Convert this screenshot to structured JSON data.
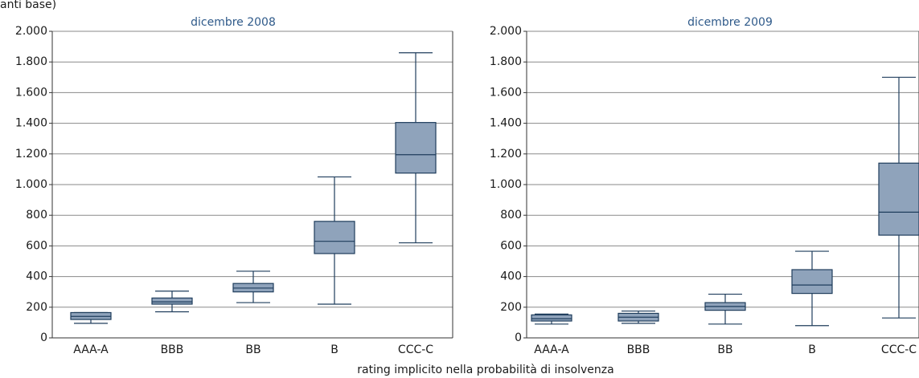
{
  "chart_data": [
    {
      "type": "box",
      "title": "dicembre 2008",
      "ylabel": "anti base)",
      "xlabel": "rating implicito nella probabilità di insolvenza",
      "categories": [
        "AAA-A",
        "BBB",
        "BB",
        "B",
        "CCC-C"
      ],
      "min": [
        95,
        170,
        230,
        220,
        620
      ],
      "q1": [
        120,
        220,
        300,
        550,
        1075
      ],
      "median": [
        140,
        235,
        325,
        630,
        1195
      ],
      "q3": [
        165,
        260,
        355,
        760,
        1405
      ],
      "max": [
        165,
        305,
        435,
        1050,
        1860
      ],
      "color": "#8fa3bb",
      "line_color": "#1f3d5c",
      "ylim": [
        0,
        2000
      ],
      "yticks": [
        0,
        200,
        400,
        600,
        800,
        {
          "value": 1000,
          "label": "1.000"
        },
        {
          "value": 1200,
          "label": "1.200"
        },
        {
          "value": 1400,
          "label": "1.400"
        },
        {
          "value": 1600,
          "label": "1.600"
        },
        {
          "value": 1800,
          "label": "1.800"
        },
        {
          "value": 2000,
          "label": "2.000"
        }
      ],
      "grid": true
    },
    {
      "type": "box",
      "title": "dicembre 2009",
      "categories": [
        "AAA-A",
        "BBB",
        "BB",
        "B",
        "CCC-C"
      ],
      "min": [
        90,
        95,
        90,
        80,
        130
      ],
      "q1": [
        110,
        110,
        180,
        290,
        670
      ],
      "median": [
        125,
        135,
        205,
        345,
        820
      ],
      "q3": [
        150,
        160,
        230,
        445,
        1140
      ],
      "max": [
        155,
        175,
        285,
        565,
        1700
      ],
      "color": "#8fa3bb",
      "line_color": "#1f3d5c",
      "ylim": [
        0,
        2000
      ],
      "yticks": [
        0,
        200,
        400,
        600,
        800,
        {
          "value": 1000,
          "label": "1.000"
        },
        {
          "value": 1200,
          "label": "1.200"
        },
        {
          "value": 1400,
          "label": "1.400"
        },
        {
          "value": 1600,
          "label": "1.600"
        },
        {
          "value": 1800,
          "label": "1.800"
        },
        {
          "value": 2000,
          "label": "2.000"
        }
      ],
      "grid": true
    }
  ]
}
